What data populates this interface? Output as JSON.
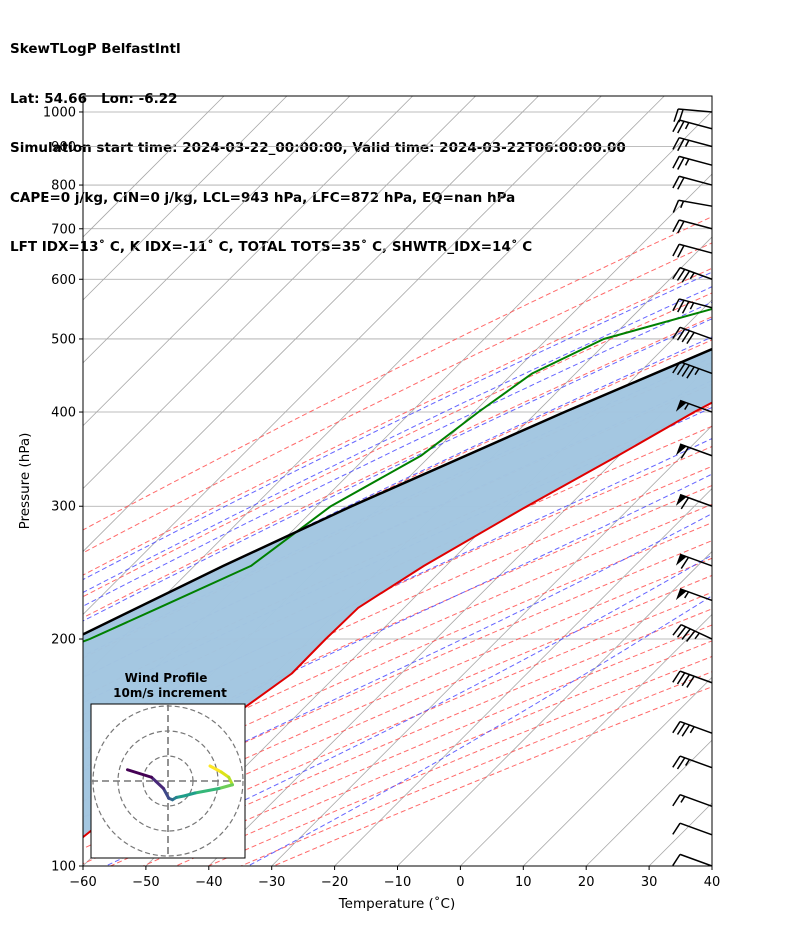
{
  "header": {
    "line1": "SkewTLogP BelfastIntl",
    "line2": "Lat: 54.66   Lon: -6.22",
    "line3": "Simulation start time: 2024-03-22_00:00:00, Valid time: 2024-03-22T06:00:00.00",
    "line4": "CAPE=0 j/kg, CIN=0 j/kg, LCL=943 hPa, LFC=872 hPa, EQ=nan hPa",
    "line5": "LFT IDX=13˚ C, K IDX=-11˚ C, TOTAL TOTS=35˚ C, SHWTR_IDX=14˚ C"
  },
  "colors": {
    "temperature": "#e00000",
    "dewpoint": "#008000",
    "parcel": "#000000",
    "cape_fill": "#a2c6e0",
    "dry_adiabat": "#ff5050",
    "moist_adiabat": "#4a4aff",
    "mixing_ratio": "#9933cc",
    "isotherm": "#a8a8a8"
  },
  "chart_data": {
    "type": "line",
    "title": "",
    "xlabel": "Temperature (˚C)",
    "ylabel": "Pressure (hPa)",
    "xlim": [
      -60,
      40
    ],
    "ylim": [
      1050,
      100
    ],
    "yscale": "log",
    "grid": true,
    "x_ticks": [
      "−60",
      "−50",
      "−40",
      "−30",
      "−20",
      "−10",
      "0",
      "10",
      "20",
      "30",
      "40"
    ],
    "y_ticks": [
      "100",
      "200",
      "300",
      "400",
      "500",
      "600",
      "700",
      "800",
      "900",
      "1000"
    ],
    "series": [
      {
        "name": "Temperature",
        "pressure": [
          1000,
          975,
          950,
          925,
          900,
          850,
          800,
          700,
          600,
          500,
          450,
          400,
          350,
          300,
          250,
          220,
          200,
          180,
          160,
          140,
          120,
          100
        ],
        "temperature": [
          5.6,
          4.2,
          2.5,
          0.8,
          -0.4,
          -2.5,
          -4.7,
          -10.0,
          -16.5,
          -25.0,
          -29.5,
          -35.0,
          -40.2,
          -46.6,
          -53.5,
          -57.3,
          -57.5,
          -57.4,
          -59.8,
          -61.3,
          -63.3,
          -65.8
        ]
      },
      {
        "name": "Dewpoint",
        "pressure": [
          1000,
          975,
          950,
          925,
          900,
          850,
          800,
          750,
          700,
          650,
          630,
          600,
          550,
          500,
          450,
          400,
          350,
          300,
          250,
          220,
          200,
          180,
          160,
          140,
          120,
          100
        ],
        "temperature": [
          1.6,
          0.5,
          -1.0,
          -2.2,
          -3.7,
          -6.5,
          -11.3,
          -18.9,
          -27.7,
          -40.0,
          -45.9,
          -47.0,
          -48.0,
          -61.0,
          -66.9,
          -69.3,
          -71.5,
          -77.8,
          -81.0,
          -89.0,
          -95.0,
          -104.0,
          -110.0,
          -112.0,
          -113.8,
          -116.0
        ]
      },
      {
        "name": "Parcel",
        "pressure": [
          1000,
          975,
          950,
          943,
          900,
          850,
          800,
          700,
          600,
          500,
          400,
          300,
          250,
          200,
          150,
          100
        ],
        "temperature": [
          5.6,
          3.5,
          1.4,
          1.0,
          -1.5,
          -4.6,
          -8.2,
          -16.5,
          -27.0,
          -40.0,
          -55.6,
          -74.5,
          -85.4,
          -97.6,
          -111.0,
          -126.0
        ]
      }
    ],
    "wind_barbs": {
      "pressure": [
        1000,
        950,
        900,
        850,
        800,
        750,
        700,
        650,
        600,
        550,
        500,
        450,
        400,
        350,
        300,
        250,
        225,
        200,
        175,
        150,
        135,
        120,
        110,
        100
      ],
      "direction_deg": [
        275,
        285,
        285,
        285,
        285,
        280,
        285,
        285,
        290,
        285,
        290,
        290,
        290,
        290,
        290,
        290,
        290,
        295,
        290,
        290,
        290,
        290,
        290,
        290
      ],
      "speed_kt": [
        20,
        25,
        25,
        25,
        20,
        15,
        20,
        20,
        35,
        35,
        40,
        45,
        55,
        60,
        60,
        60,
        55,
        45,
        40,
        35,
        25,
        15,
        10,
        10
      ]
    },
    "hodograph": {
      "title": "Wind Profile",
      "subtitle": "10m/s increment",
      "rings_ms": [
        10,
        20,
        30
      ],
      "u": [
        4.0,
        5.5,
        6.5,
        7.0,
        5.2,
        2.0,
        0.5,
        -0.5,
        -1.0,
        -1.5,
        -2.2,
        -3.8,
        -7.0
      ],
      "v": [
        2.0,
        1.2,
        0.5,
        -0.5,
        -1.0,
        -1.6,
        -2.0,
        -2.2,
        -2.5,
        -2.3,
        -1.0,
        0.5,
        1.5
      ],
      "colormap": "viridis"
    }
  }
}
